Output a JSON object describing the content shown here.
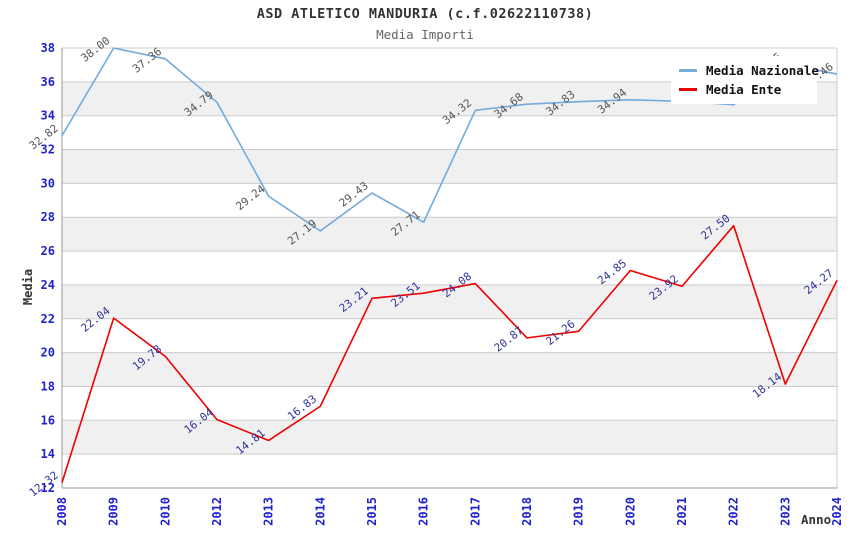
{
  "header": {
    "title": "ASD ATLETICO MANDURIA (c.f.02622110738)",
    "subtitle": "Media Importi"
  },
  "chart_data": {
    "type": "line",
    "title": "ASD ATLETICO MANDURIA (c.f.02622110738)",
    "subtitle": "Media Importi",
    "x_axis": {
      "title": "Anno",
      "categories": [
        "2008",
        "2009",
        "2010",
        "2012",
        "2013",
        "2014",
        "2015",
        "2016",
        "2017",
        "2018",
        "2019",
        "2020",
        "2021",
        "2022",
        "2023",
        "2024"
      ],
      "tick_color": "#2222cc"
    },
    "y_axis": {
      "title": "Media",
      "min": 12,
      "max": 38,
      "tick_step": 2,
      "tick_color": "#2222cc"
    },
    "series": [
      {
        "name": "Media Nazionale",
        "color": "#74aadd",
        "label_color": "#555555",
        "values": [
          32.82,
          38.0,
          37.36,
          34.79,
          29.24,
          27.19,
          29.43,
          27.71,
          34.32,
          34.68,
          34.83,
          34.94,
          34.85,
          34.65,
          37.05,
          36.46
        ],
        "labels": [
          "32.82",
          "38.00",
          "37.36",
          "34.79",
          "29.24",
          "27.19",
          "29.43",
          "27.71",
          "34.32",
          "34.68",
          "34.83",
          "34.94",
          null,
          null,
          "37.05",
          "36.46"
        ]
      },
      {
        "name": "Media Ente",
        "color": "#ee0000",
        "label_color": "#333399",
        "values": [
          12.32,
          22.04,
          19.78,
          16.04,
          14.81,
          16.83,
          23.21,
          23.51,
          24.08,
          20.87,
          21.26,
          24.85,
          23.92,
          27.5,
          18.14,
          24.27
        ],
        "labels": [
          "12.32",
          "22.04",
          "19.78",
          "16.04",
          "14.81",
          "16.83",
          "23.21",
          "23.51",
          "24.08",
          "20.87",
          "21.26",
          "24.85",
          "23.92",
          "27.50",
          "18.14",
          "24.27"
        ]
      }
    ],
    "legend": {
      "position": "top-right"
    },
    "grid": {
      "stripe_color": "#f0f0f0",
      "line_color": "#cccccc",
      "axis_color": "#999999",
      "border_color": "#cccccc"
    }
  }
}
